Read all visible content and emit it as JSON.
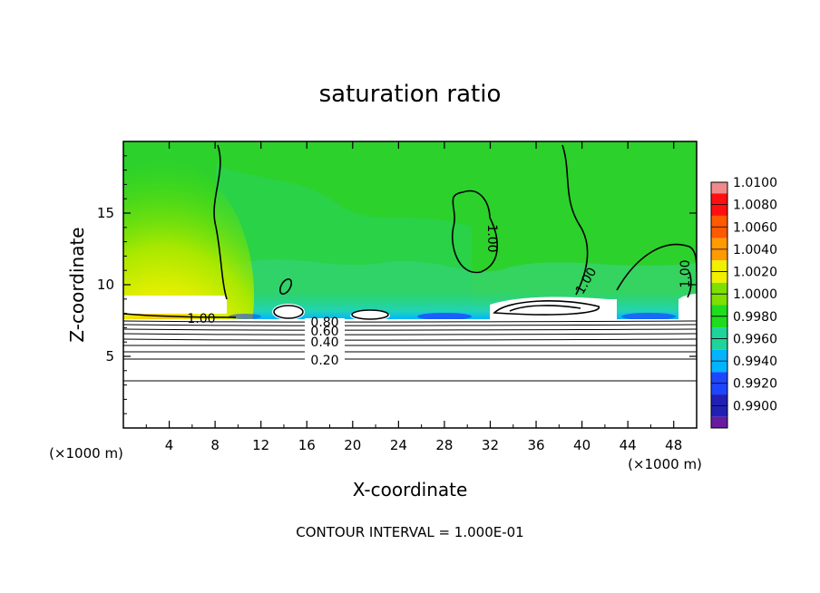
{
  "chart_data": {
    "type": "heatmap",
    "title": "saturation ratio",
    "xlabel": "X-coordinate",
    "ylabel": "Z-coordinate",
    "x_unit_label": "(×1000 m)",
    "z_unit_label": "(×1000 m)",
    "xlim": [
      0,
      50
    ],
    "ylim": [
      0,
      20
    ],
    "x_ticks": [
      4,
      8,
      12,
      16,
      20,
      24,
      28,
      32,
      36,
      40,
      44,
      48
    ],
    "y_ticks": [
      5,
      10,
      15
    ],
    "colorbar": {
      "levels": [
        "1.0100",
        "1.0080",
        "1.0060",
        "1.0040",
        "1.0020",
        "1.0000",
        "0.9980",
        "0.9960",
        "0.9940",
        "0.9920",
        "0.9900"
      ],
      "colors": [
        "#f08a8a",
        "#ff1010",
        "#ff5a00",
        "#ff9a00",
        "#f0f000",
        "#7ee000",
        "#1edc1e",
        "#1ed49a",
        "#00b4ff",
        "#1e46ff",
        "#2020b4",
        "#6a1aa0"
      ]
    },
    "contour_labels": [
      "1.00",
      "1.00",
      "1.00",
      "1.00",
      "0.80",
      "0.60",
      "0.40",
      "0.20"
    ],
    "contour_interval_text": "CONTOUR INTERVAL = 1.000E-01"
  }
}
